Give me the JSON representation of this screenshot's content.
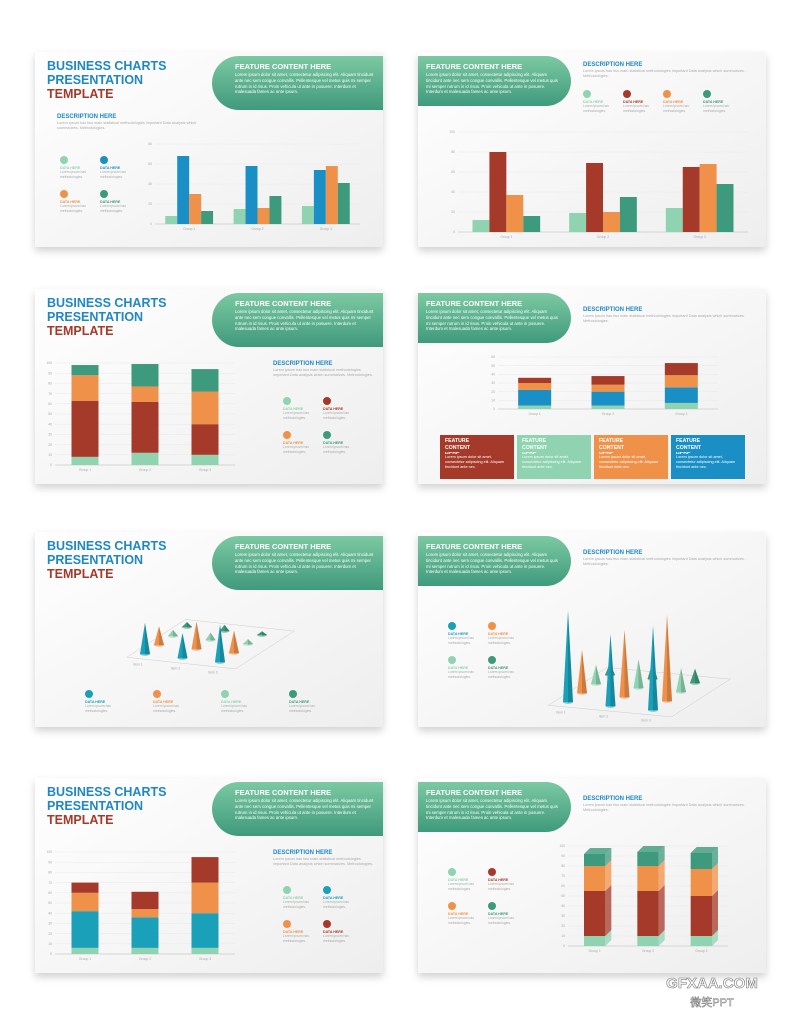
{
  "common": {
    "title": [
      "BUSINESS CHARTS",
      "PRESENTATION",
      "TEMPLATE"
    ],
    "feature_heading": "FEATURE CONTENT HERE",
    "feature_body": "Lorem ipsum dolor sit amet, consectetur adipiscing elit. Aliquam tincidunt ante nec sem congue convallis. Pellentesque vel metus quis mi semper rutrum in id risus. Proin vehicula ut ante in posuere. Interdum et malesuada fames ac ante ipsum.",
    "description_heading": "DESCRIPTION HERE",
    "description_body": "Lorem ipsum has two main statistical methodologies important Data analysis which summarizes. Methodologies.",
    "legend_label": "DATA HERE",
    "legend_text": "Lorem ipsum has methodologies.",
    "box_heading": "FEATURE CONTENT HERE",
    "box_body": "Lorem ipsum dolor sit amet, consectetur adipiscing elit. Aliquam tincidunt ante nec."
  },
  "slides": [
    {
      "chart": {
        "type": "grouped",
        "categories": [
          "Group 1",
          "Group 2",
          "Group 3"
        ],
        "ylim": [
          0,
          80
        ],
        "yticks": [
          0,
          20,
          40,
          60,
          80
        ],
        "series": [
          {
            "color": "#8fd3b0",
            "values": [
              8,
              15,
              18
            ]
          },
          {
            "color": "#1a8fc6",
            "values": [
              68,
              58,
              54
            ]
          },
          {
            "color": "#f0914a",
            "values": [
              30,
              16,
              58
            ]
          },
          {
            "color": "#3d9a7c",
            "values": [
              13,
              28,
              41
            ]
          }
        ]
      }
    },
    {
      "chart": {
        "type": "grouped",
        "categories": [
          "Group 1",
          "Group 2",
          "Group 3"
        ],
        "ylim": [
          0,
          100
        ],
        "yticks": [
          0,
          20,
          40,
          60,
          80,
          100
        ],
        "series": [
          {
            "color": "#8fd3b0",
            "values": [
              12,
              19,
              24
            ]
          },
          {
            "color": "#a63a2a",
            "values": [
              80,
              69,
              65
            ]
          },
          {
            "color": "#f0914a",
            "values": [
              37,
              20,
              68
            ]
          },
          {
            "color": "#3d9a7c",
            "values": [
              16,
              35,
              48
            ]
          }
        ]
      }
    },
    {
      "chart": {
        "type": "stacked",
        "categories": [
          "Group 1",
          "Group 2",
          "Group 3"
        ],
        "ylim": [
          0,
          100
        ],
        "yticks": [
          0,
          10,
          20,
          30,
          40,
          50,
          60,
          70,
          80,
          90,
          100
        ],
        "series": [
          {
            "color": "#8fd3b0",
            "values": [
              8,
              12,
              10
            ]
          },
          {
            "color": "#a63a2a",
            "values": [
              55,
              50,
              30
            ]
          },
          {
            "color": "#f0914a",
            "values": [
              25,
              15,
              32
            ]
          },
          {
            "color": "#3d9a7c",
            "values": [
              10,
              22,
              22
            ]
          }
        ]
      }
    },
    {
      "chart": {
        "type": "stacked",
        "categories": [
          "Group 1",
          "Group 2",
          "Group 3"
        ],
        "ylim": [
          0,
          60
        ],
        "yticks": [
          0,
          10,
          20,
          30,
          40,
          50,
          60
        ],
        "series": [
          {
            "color": "#8fd3b0",
            "values": [
              4,
              4,
              7
            ]
          },
          {
            "color": "#1a8fc6",
            "values": [
              18,
              16,
              18
            ]
          },
          {
            "color": "#f0914a",
            "values": [
              8,
              8,
              14
            ]
          },
          {
            "color": "#a63a2a",
            "values": [
              6,
              10,
              14
            ]
          }
        ]
      },
      "boxes": [
        "#a63a2a",
        "#8fd3b0",
        "#f0914a",
        "#1a8fc6"
      ]
    },
    {
      "chart": {
        "type": "cones",
        "categories": [
          "Item 1",
          "Item 2",
          "Item 3"
        ],
        "ylim": [
          0,
          40
        ],
        "series": [
          {
            "color": "#1aa0b8",
            "values": [
              25,
              20,
              30
            ]
          },
          {
            "color": "#f0914a",
            "values": [
              15,
              22,
              18
            ]
          },
          {
            "color": "#8fd3b0",
            "values": [
              5,
              6,
              4
            ]
          },
          {
            "color": "#3d9a7c",
            "values": [
              4,
              5,
              3
            ]
          }
        ]
      }
    },
    {
      "chart": {
        "type": "cones",
        "categories": [
          "Item 1",
          "Item 2",
          "Item 3"
        ],
        "ylim": [
          0,
          40
        ],
        "series": [
          {
            "color": "#1aa0b8",
            "values": [
              38,
              30,
              35
            ]
          },
          {
            "color": "#f0914a",
            "values": [
              18,
              28,
              36
            ]
          },
          {
            "color": "#8fd3b0",
            "values": [
              8,
              12,
              10
            ]
          },
          {
            "color": "#3d9a7c",
            "values": [
              5,
              7,
              6
            ]
          }
        ]
      }
    },
    {
      "chart": {
        "type": "stacked",
        "categories": [
          "Group 1",
          "Group 2",
          "Group 3"
        ],
        "ylim": [
          0,
          100
        ],
        "yticks": [
          0,
          10,
          20,
          30,
          40,
          50,
          60,
          70,
          80,
          90,
          100
        ],
        "series": [
          {
            "color": "#8fd3b0",
            "values": [
              6,
              6,
              6
            ]
          },
          {
            "color": "#1aa0b8",
            "values": [
              36,
              30,
              34
            ]
          },
          {
            "color": "#f0914a",
            "values": [
              18,
              8,
              30
            ]
          },
          {
            "color": "#a63a2a",
            "values": [
              10,
              17,
              25
            ]
          }
        ]
      }
    },
    {
      "chart": {
        "type": "stacked3d",
        "categories": [
          "Group 1",
          "Group 2",
          "Group 3"
        ],
        "ylim": [
          0,
          100
        ],
        "yticks": [
          0,
          10,
          20,
          30,
          40,
          50,
          60,
          70,
          80,
          90,
          100
        ],
        "series": [
          {
            "color": "#8fd3b0",
            "values": [
              10,
              10,
              10
            ]
          },
          {
            "color": "#a63a2a",
            "values": [
              45,
              45,
              40
            ]
          },
          {
            "color": "#f0914a",
            "values": [
              25,
              25,
              27
            ]
          },
          {
            "color": "#3d9a7c",
            "values": [
              12,
              14,
              16
            ]
          }
        ]
      }
    }
  ],
  "watermark": {
    "site": "GFXAA.COM",
    "brand": "微笑PPT"
  }
}
